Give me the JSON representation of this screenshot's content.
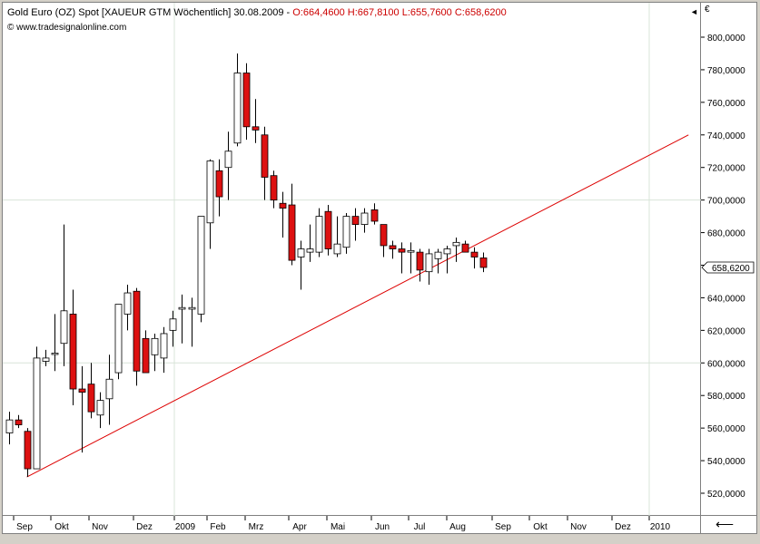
{
  "header": {
    "title": "Gold Euro (OZ) Spot [XAUEUR GTM  Wöchentlich] 30.08.2009 - ",
    "ohlc": "O:664,4600 H:667,8100 L:655,7600 C:658,6200",
    "source": "www.tradesignalonline.com",
    "currency": "€",
    "collapse_icon": "collapse-arrow-icon",
    "scroll_icon": "double-arrow-icon"
  },
  "colors": {
    "up_candle": "#ffffff",
    "down_candle": "#dd1111",
    "trendline": "#dd0000",
    "grid": "#d8e4d8"
  },
  "chart_data": {
    "type": "candlestick",
    "title": "Gold Euro (OZ) Spot [XAUEUR GTM  Wöchentlich] 30.08.2009",
    "y_ticks": [
      "800,0000",
      "780,0000",
      "760,0000",
      "740,0000",
      "720,0000",
      "700,0000",
      "680,0000",
      "660,0000",
      "640,0000",
      "620,0000",
      "600,0000",
      "580,0000",
      "560,0000",
      "540,0000",
      "520,0000"
    ],
    "ylim": [
      510,
      808
    ],
    "x_ticks": [
      "Sep",
      "Okt",
      "Nov",
      "Dez",
      "2009",
      "Feb",
      "Mrz",
      "Apr",
      "Mai",
      "Jun",
      "Jul",
      "Aug",
      "Sep",
      "Okt",
      "Nov",
      "Dez",
      "2010"
    ],
    "last_price": "658,6200",
    "last_value": 658.62,
    "candles": [
      {
        "o": 557,
        "h": 570,
        "l": 550,
        "c": 565
      },
      {
        "o": 565,
        "h": 568,
        "l": 560,
        "c": 562
      },
      {
        "o": 558,
        "h": 560,
        "l": 530,
        "c": 535
      },
      {
        "o": 535,
        "h": 610,
        "l": 535,
        "c": 603
      },
      {
        "o": 601,
        "h": 608,
        "l": 598,
        "c": 603
      },
      {
        "o": 606,
        "h": 630,
        "l": 595,
        "c": 606
      },
      {
        "o": 612,
        "h": 685,
        "l": 598,
        "c": 632
      },
      {
        "o": 630,
        "h": 645,
        "l": 574,
        "c": 584
      },
      {
        "o": 584,
        "h": 598,
        "l": 545,
        "c": 582
      },
      {
        "o": 587,
        "h": 600,
        "l": 566,
        "c": 570
      },
      {
        "o": 568,
        "h": 582,
        "l": 560,
        "c": 577
      },
      {
        "o": 578,
        "h": 605,
        "l": 562,
        "c": 590
      },
      {
        "o": 594,
        "h": 636,
        "l": 590,
        "c": 636
      },
      {
        "o": 630,
        "h": 648,
        "l": 620,
        "c": 643
      },
      {
        "o": 644,
        "h": 646,
        "l": 586,
        "c": 595
      },
      {
        "o": 615,
        "h": 620,
        "l": 596,
        "c": 594
      },
      {
        "o": 605,
        "h": 618,
        "l": 595,
        "c": 615
      },
      {
        "o": 603,
        "h": 622,
        "l": 594,
        "c": 618
      },
      {
        "o": 620,
        "h": 632,
        "l": 610,
        "c": 627
      },
      {
        "o": 633,
        "h": 642,
        "l": 612,
        "c": 634
      },
      {
        "o": 633,
        "h": 640,
        "l": 610,
        "c": 634
      },
      {
        "o": 630,
        "h": 690,
        "l": 625,
        "c": 690
      },
      {
        "o": 686,
        "h": 725,
        "l": 670,
        "c": 724
      },
      {
        "o": 718,
        "h": 725,
        "l": 690,
        "c": 702
      },
      {
        "o": 720,
        "h": 742,
        "l": 700,
        "c": 730
      },
      {
        "o": 735,
        "h": 790,
        "l": 733,
        "c": 778
      },
      {
        "o": 778,
        "h": 784,
        "l": 737,
        "c": 745
      },
      {
        "o": 745,
        "h": 762,
        "l": 735,
        "c": 743
      },
      {
        "o": 740,
        "h": 745,
        "l": 700,
        "c": 714
      },
      {
        "o": 715,
        "h": 718,
        "l": 695,
        "c": 700
      },
      {
        "o": 698,
        "h": 705,
        "l": 677,
        "c": 695
      },
      {
        "o": 697,
        "h": 710,
        "l": 660,
        "c": 663
      },
      {
        "o": 665,
        "h": 675,
        "l": 645,
        "c": 670
      },
      {
        "o": 668,
        "h": 685,
        "l": 662,
        "c": 670
      },
      {
        "o": 668,
        "h": 695,
        "l": 665,
        "c": 690
      },
      {
        "o": 693,
        "h": 697,
        "l": 666,
        "c": 670
      },
      {
        "o": 667,
        "h": 690,
        "l": 665,
        "c": 673
      },
      {
        "o": 671,
        "h": 692,
        "l": 667,
        "c": 690
      },
      {
        "o": 690,
        "h": 695,
        "l": 675,
        "c": 685
      },
      {
        "o": 685,
        "h": 695,
        "l": 680,
        "c": 692
      },
      {
        "o": 694,
        "h": 698,
        "l": 685,
        "c": 687
      },
      {
        "o": 685,
        "h": 685,
        "l": 665,
        "c": 672
      },
      {
        "o": 672,
        "h": 675,
        "l": 664,
        "c": 670
      },
      {
        "o": 670,
        "h": 674,
        "l": 655,
        "c": 668
      },
      {
        "o": 668,
        "h": 674,
        "l": 655,
        "c": 669
      },
      {
        "o": 668,
        "h": 670,
        "l": 650,
        "c": 657
      },
      {
        "o": 656,
        "h": 670,
        "l": 648,
        "c": 667
      },
      {
        "o": 664,
        "h": 670,
        "l": 655,
        "c": 668
      },
      {
        "o": 667,
        "h": 672,
        "l": 655,
        "c": 670
      },
      {
        "o": 672,
        "h": 677,
        "l": 662,
        "c": 674
      },
      {
        "o": 673,
        "h": 675,
        "l": 668,
        "c": 668
      },
      {
        "o": 668,
        "h": 671,
        "l": 658,
        "c": 665
      },
      {
        "o": 664.46,
        "h": 667.81,
        "l": 655.76,
        "c": 658.62
      }
    ],
    "trendline": {
      "start_index": 2,
      "start_value": 530,
      "end_index": 74.5,
      "end_value": 740
    }
  }
}
